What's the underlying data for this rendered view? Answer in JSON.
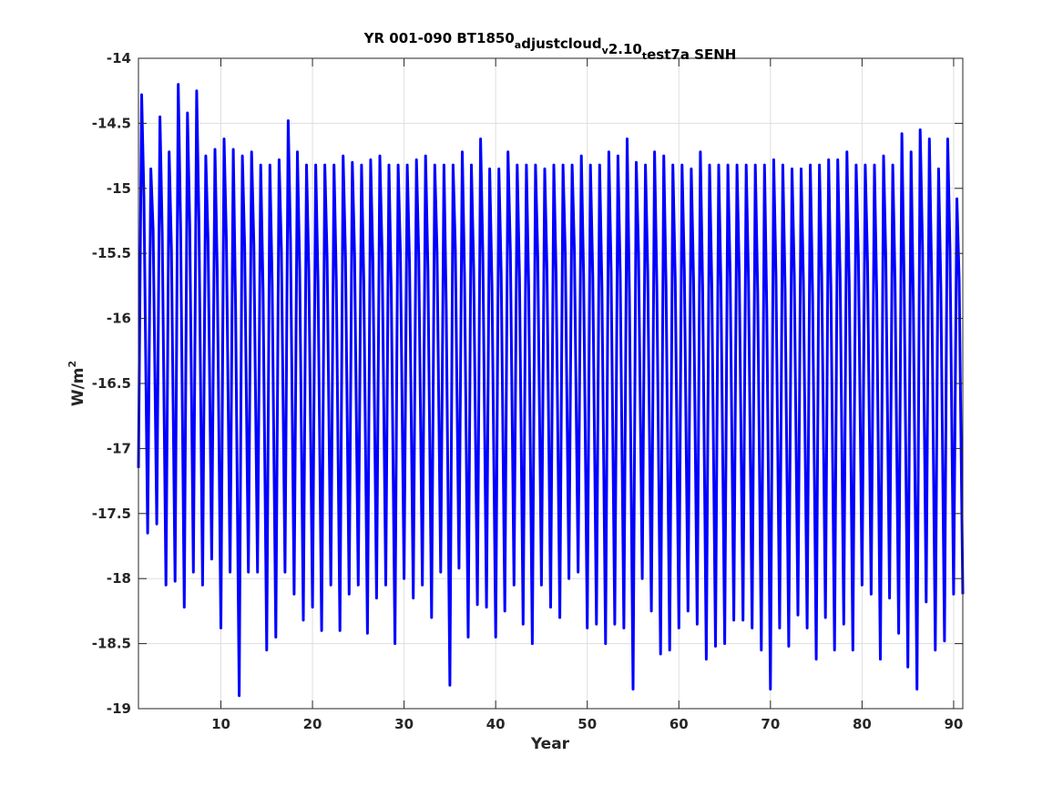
{
  "chart_data": {
    "type": "line",
    "title": {
      "parts": [
        {
          "text": "YR 001-090 BT1850",
          "style": "normal"
        },
        {
          "text": "a",
          "style": "sub"
        },
        {
          "text": "djustcloud",
          "style": "normal"
        },
        {
          "text": "v",
          "style": "sub"
        },
        {
          "text": "2.10",
          "style": "normal"
        },
        {
          "text": "t",
          "style": "sub"
        },
        {
          "text": "est7a SENH",
          "style": "normal"
        }
      ]
    },
    "xlabel": "Year",
    "ylabel": {
      "base": "W/m",
      "sup": "2"
    },
    "xlim": [
      1,
      91
    ],
    "ylim": [
      -19,
      -14
    ],
    "xticks": [
      10,
      20,
      30,
      40,
      50,
      60,
      70,
      80,
      90
    ],
    "yticks": [
      -14,
      -14.5,
      -15,
      -15.5,
      -16,
      -16.5,
      -17,
      -17.5,
      -18,
      -18.5,
      -19
    ],
    "grid": true,
    "line_color": "#0000ff",
    "series": [
      {
        "cycle_peaks": [
          -14.28,
          -14.85,
          -14.45,
          -14.72,
          -14.2,
          -14.42,
          -14.25,
          -14.75,
          -14.7,
          -14.62,
          -14.7,
          -14.75,
          -14.72,
          -14.82,
          -14.82,
          -14.78,
          -14.48,
          -14.72,
          -14.82,
          -14.82,
          -14.82,
          -14.82,
          -14.75,
          -14.8,
          -14.82,
          -14.78,
          -14.75,
          -14.82,
          -14.82,
          -14.82,
          -14.78,
          -14.75,
          -14.82,
          -14.82,
          -14.82,
          -14.72,
          -14.82,
          -14.62,
          -14.85,
          -14.85,
          -14.72,
          -14.82,
          -14.82,
          -14.82,
          -14.85,
          -14.82,
          -14.82,
          -14.82,
          -14.75,
          -14.82,
          -14.82,
          -14.72,
          -14.75,
          -14.62,
          -14.8,
          -14.82,
          -14.72,
          -14.75,
          -14.82,
          -14.82,
          -14.85,
          -14.72,
          -14.82,
          -14.82,
          -14.82,
          -14.82,
          -14.82,
          -14.82,
          -14.82,
          -14.78,
          -14.82,
          -14.85,
          -14.85,
          -14.82,
          -14.82,
          -14.78,
          -14.78,
          -14.72,
          -14.82,
          -14.82,
          -14.82,
          -14.75,
          -14.82,
          -14.58,
          -14.72,
          -14.55,
          -14.62,
          -14.85,
          -14.62,
          -15.08
        ],
        "cycle_troughs": [
          -17.15,
          -17.65,
          -17.58,
          -18.05,
          -18.02,
          -18.22,
          -17.95,
          -18.05,
          -17.85,
          -18.38,
          -17.95,
          -18.9,
          -17.95,
          -17.95,
          -18.55,
          -18.45,
          -17.95,
          -18.12,
          -18.32,
          -18.22,
          -18.4,
          -18.05,
          -18.4,
          -18.12,
          -18.05,
          -18.42,
          -18.15,
          -18.05,
          -18.5,
          -18.0,
          -18.15,
          -18.05,
          -18.3,
          -17.95,
          -18.82,
          -17.92,
          -18.45,
          -18.2,
          -18.22,
          -18.45,
          -18.25,
          -18.05,
          -18.35,
          -18.5,
          -18.05,
          -18.22,
          -18.3,
          -18.0,
          -17.95,
          -18.38,
          -18.35,
          -18.5,
          -18.35,
          -18.38,
          -18.85,
          -18.0,
          -18.25,
          -18.58,
          -18.55,
          -18.38,
          -18.25,
          -18.35,
          -18.62,
          -18.52,
          -18.5,
          -18.32,
          -18.32,
          -18.38,
          -18.55,
          -18.85,
          -18.38,
          -18.52,
          -18.28,
          -18.38,
          -18.62,
          -18.3,
          -18.55,
          -18.35,
          -18.55,
          -18.05,
          -18.12,
          -18.62,
          -18.15,
          -18.42,
          -18.68,
          -18.85,
          -18.18,
          -18.55,
          -18.48,
          -18.12
        ]
      }
    ]
  }
}
